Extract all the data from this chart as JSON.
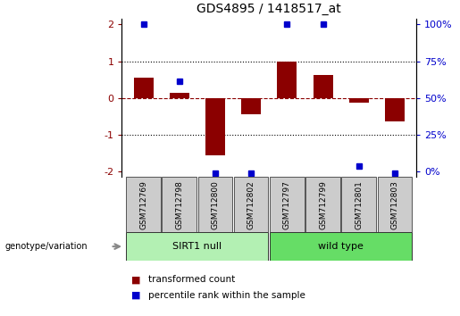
{
  "title": "GDS4895 / 1418517_at",
  "samples": [
    "GSM712769",
    "GSM712798",
    "GSM712800",
    "GSM712802",
    "GSM712797",
    "GSM712799",
    "GSM712801",
    "GSM712803"
  ],
  "red_values": [
    0.55,
    0.13,
    -1.55,
    -0.45,
    1.0,
    0.62,
    -0.12,
    -0.65
  ],
  "blue_values": [
    2.0,
    0.45,
    -2.05,
    -2.05,
    2.0,
    2.0,
    -1.85,
    -2.05
  ],
  "groups": [
    {
      "label": "SIRT1 null",
      "start": 0,
      "end": 3,
      "color": "#b3f0b3"
    },
    {
      "label": "wild type",
      "start": 4,
      "end": 7,
      "color": "#66dd66"
    }
  ],
  "ylim": [
    -2.15,
    2.15
  ],
  "yticks_left": [
    -2,
    -1,
    0,
    1,
    2
  ],
  "red_color": "#8B0000",
  "blue_color": "#0000cc",
  "bar_width": 0.55,
  "legend_red_label": "transformed count",
  "legend_blue_label": "percentile rank within the sample",
  "genotype_label": "genotype/variation"
}
